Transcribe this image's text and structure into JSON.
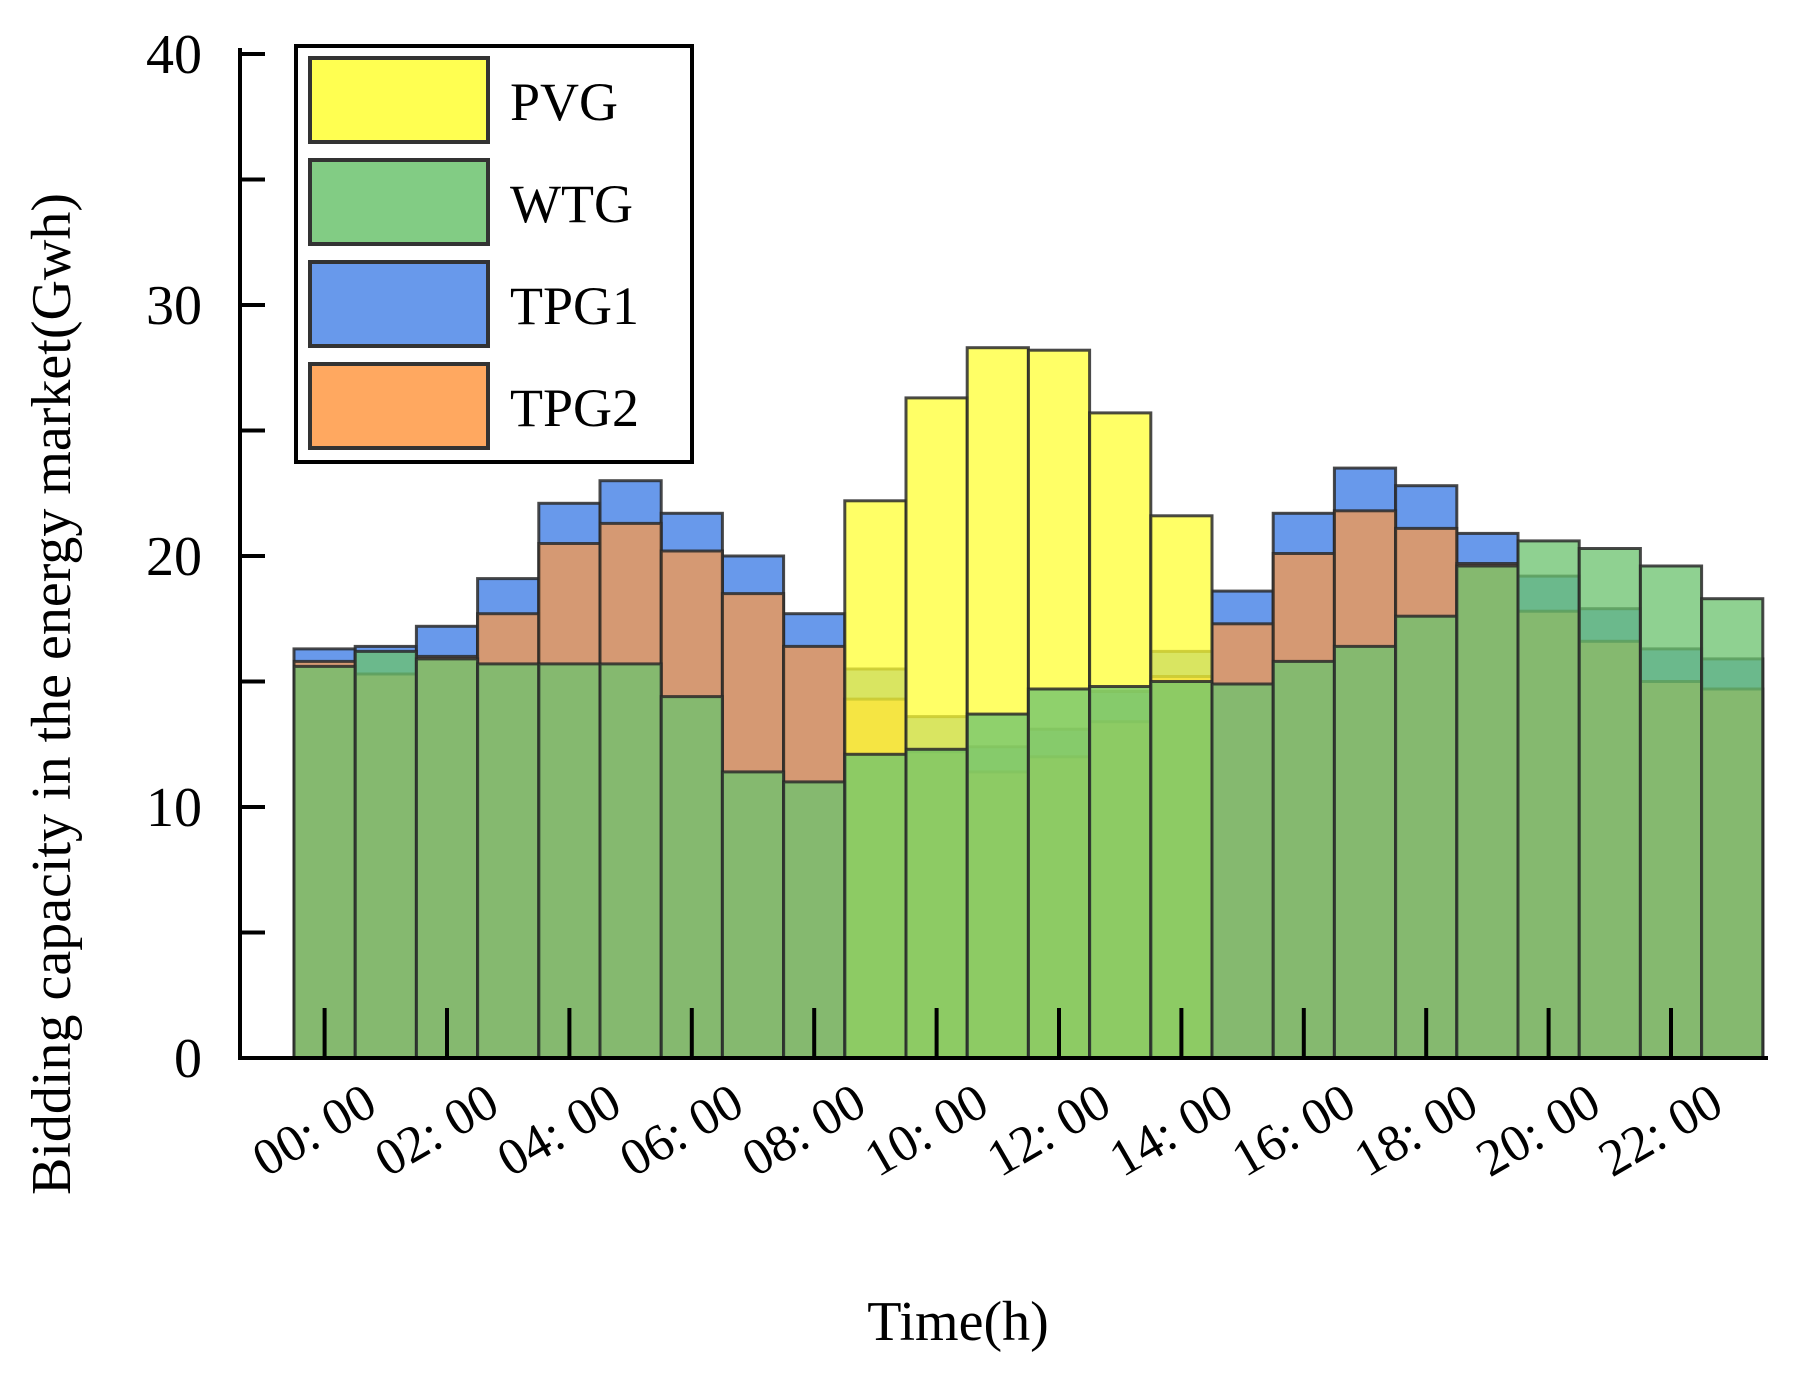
{
  "chart_data": {
    "type": "bar",
    "title": "",
    "xlabel": "Time(h)",
    "ylabel": "Bidding capacity in the energy market(Gwh)",
    "ylim": [
      0,
      40
    ],
    "yticks": [
      0,
      10,
      20,
      30,
      40
    ],
    "categories": [
      "00: 00",
      "01: 00",
      "02: 00",
      "03: 00",
      "04: 00",
      "05: 00",
      "06: 00",
      "07: 00",
      "08: 00",
      "09: 00",
      "10: 00",
      "11: 00",
      "12: 00",
      "13: 00",
      "14: 00",
      "15: 00",
      "16: 00",
      "17: 00",
      "18: 00",
      "19: 00",
      "20: 00",
      "21: 00",
      "22: 00",
      "23: 00"
    ],
    "xtick_labels": [
      "00: 00",
      "02: 00",
      "04: 00",
      "06: 00",
      "08: 00",
      "10: 00",
      "12: 00",
      "14: 00",
      "16: 00",
      "18: 00",
      "20: 00",
      "22: 00"
    ],
    "legend_position": "top-left",
    "grid": false,
    "series": [
      {
        "name": "PVG",
        "color": "#ffff33",
        "values": [
          0,
          0,
          0,
          0,
          0,
          0,
          0,
          0,
          0,
          22.2,
          26.3,
          28.3,
          28.2,
          25.7,
          21.6,
          0,
          0,
          0,
          0,
          0,
          0,
          0,
          0,
          0
        ]
      },
      {
        "name": "WTG",
        "color": "#6cc36e",
        "values": [
          15.6,
          16.2,
          15.9,
          15.7,
          15.7,
          15.7,
          14.4,
          11.4,
          11.0,
          12.1,
          12.3,
          13.7,
          14.7,
          14.8,
          15.0,
          14.9,
          15.8,
          16.4,
          17.6,
          19.6,
          20.6,
          20.3,
          19.6,
          18.3
        ]
      },
      {
        "name": "TPG1",
        "color": "#4d87e8",
        "values": [
          16.3,
          16.4,
          17.2,
          19.1,
          22.1,
          23.0,
          21.7,
          20.0,
          17.7,
          15.5,
          13.6,
          12.4,
          13.1,
          14.6,
          16.2,
          18.6,
          21.7,
          23.5,
          22.8,
          20.9,
          19.2,
          17.9,
          16.3,
          15.9
        ]
      },
      {
        "name": "TPG2",
        "color": "#ff9944",
        "values": [
          15.8,
          15.3,
          16.0,
          17.7,
          20.5,
          21.3,
          20.2,
          18.5,
          16.4,
          14.3,
          12.2,
          11.4,
          12.0,
          13.4,
          15.2,
          17.3,
          20.1,
          21.8,
          21.1,
          19.7,
          17.8,
          16.6,
          15.0,
          14.7
        ]
      }
    ]
  }
}
